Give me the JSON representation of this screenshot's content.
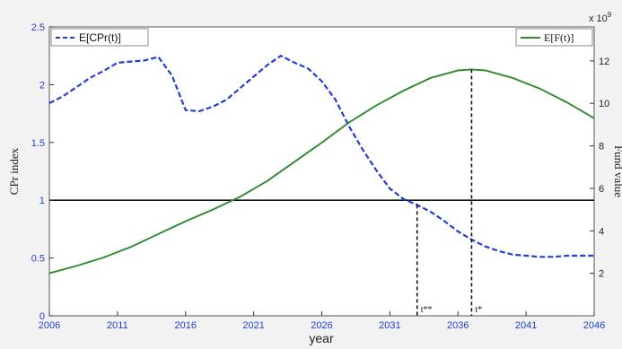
{
  "chart_data": {
    "type": "line",
    "xlabel": "year",
    "ylabel_left": "CPr index",
    "ylabel_right": "Fund value",
    "right_axis_multiplier": "x 10",
    "right_axis_exponent": "9",
    "xlim": [
      2006,
      2046
    ],
    "ylim_left": [
      0,
      2.5
    ],
    "ylim_right": [
      0,
      13.6
    ],
    "x_ticks": [
      2006,
      2011,
      2016,
      2021,
      2026,
      2031,
      2036,
      2041,
      2046
    ],
    "y_ticks_left": [
      "0",
      "0.5",
      "1",
      "1.5",
      "2",
      "2.5"
    ],
    "y_ticks_right": [
      "2",
      "4",
      "6",
      "8",
      "10",
      "12"
    ],
    "grid": false,
    "series": [
      {
        "name": "E[CPr(t)]",
        "axis": "left",
        "style": "dashed",
        "color": "#1f3fd6",
        "legend": "top-left",
        "x": [
          2006,
          2007,
          2008,
          2009,
          2010,
          2011,
          2012,
          2013,
          2014,
          2015,
          2016,
          2017,
          2018,
          2019,
          2020,
          2021,
          2022,
          2023,
          2024,
          2025,
          2026,
          2027,
          2028,
          2029,
          2030,
          2031,
          2032,
          2033,
          2034,
          2035,
          2036,
          2037,
          2038,
          2039,
          2040,
          2041,
          2042,
          2043,
          2044,
          2045,
          2046
        ],
        "values": [
          1.84,
          1.9,
          1.98,
          2.06,
          2.12,
          2.19,
          2.2,
          2.21,
          2.24,
          2.08,
          1.78,
          1.77,
          1.81,
          1.87,
          1.97,
          2.07,
          2.17,
          2.25,
          2.19,
          2.14,
          2.03,
          1.87,
          1.64,
          1.44,
          1.26,
          1.1,
          1.01,
          0.96,
          0.9,
          0.82,
          0.73,
          0.66,
          0.6,
          0.56,
          0.53,
          0.52,
          0.51,
          0.51,
          0.52,
          0.52,
          0.52
        ]
      },
      {
        "name": "E[F(t)]",
        "axis": "right",
        "style": "solid",
        "color": "#2d8a2d",
        "legend": "top-right",
        "x": [
          2006,
          2008,
          2010,
          2012,
          2014,
          2016,
          2018,
          2020,
          2022,
          2024,
          2026,
          2028,
          2030,
          2032,
          2034,
          2036,
          2037,
          2038,
          2040,
          2042,
          2044,
          2046
        ],
        "values": [
          2.0,
          2.35,
          2.75,
          3.25,
          3.85,
          4.45,
          5.0,
          5.6,
          6.35,
          7.25,
          8.15,
          9.1,
          9.9,
          10.6,
          11.2,
          11.55,
          11.6,
          11.55,
          11.2,
          10.7,
          10.05,
          9.3
        ]
      }
    ],
    "reference_lines": [
      {
        "type": "horizontal",
        "axis": "left",
        "value": 1.0
      }
    ],
    "annotations": [
      {
        "label": "t**",
        "x": 2033,
        "y": 0.96,
        "axis": "left"
      },
      {
        "label": "t*",
        "x": 2037,
        "y": 11.6,
        "axis": "right"
      }
    ]
  }
}
